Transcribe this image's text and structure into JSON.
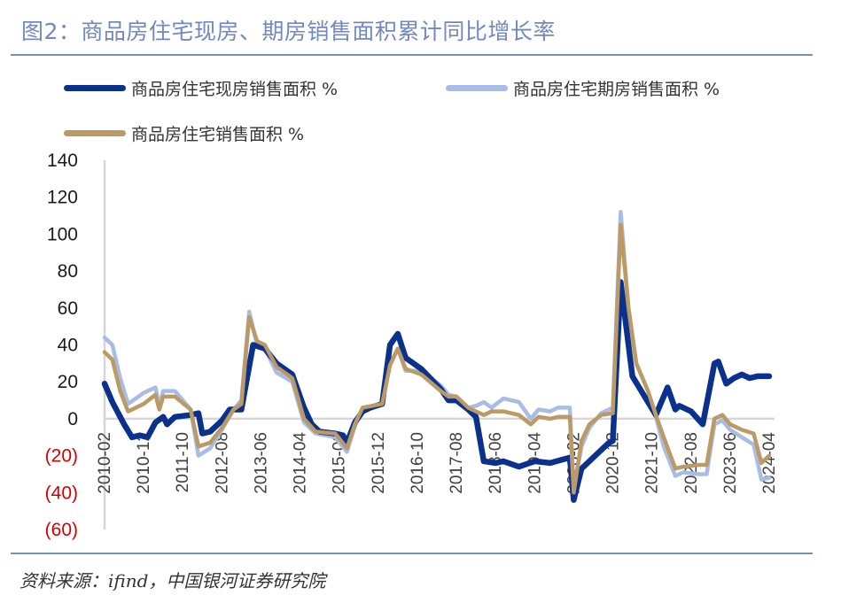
{
  "title": "图2：商品房住宅现房、期房销售面积累计同比增长率",
  "source": "资料来源：ifind，中国银河证券研究院",
  "colors": {
    "existing": "#0a318c",
    "forward": "#a7bde6",
    "total": "#bc9a66",
    "negative_label": "#d40000",
    "axis": "#d6d6d6"
  },
  "chart_data": {
    "type": "line",
    "title": "图2：商品房住宅现房、期房销售面积累计同比增长率",
    "xlabel": "",
    "ylabel": "",
    "ylim": [
      -60,
      140
    ],
    "xrange": [
      "2010-02",
      "2024-04"
    ],
    "yticks": [
      {
        "value": 140,
        "label": "140"
      },
      {
        "value": 120,
        "label": "120"
      },
      {
        "value": 100,
        "label": "100"
      },
      {
        "value": 80,
        "label": "80"
      },
      {
        "value": 60,
        "label": "60"
      },
      {
        "value": 40,
        "label": "40"
      },
      {
        "value": 20,
        "label": "20"
      },
      {
        "value": 0,
        "label": "0"
      },
      {
        "value": -20,
        "label": "(20)"
      },
      {
        "value": -40,
        "label": "(40)"
      },
      {
        "value": -60,
        "label": "(60)"
      }
    ],
    "xticks": [
      "2010-02",
      "2010-12",
      "2011-10",
      "2012-08",
      "2013-06",
      "2014-04",
      "2015-02",
      "2015-12",
      "2016-10",
      "2017-08",
      "2018-06",
      "2019-04",
      "2020-02",
      "2020-12",
      "2021-10",
      "2022-08",
      "2023-06",
      "2024-04"
    ],
    "legend": "top",
    "series": [
      {
        "name": "商品房住宅期房销售面积 %",
        "key": "forward",
        "width": 4.5,
        "points": [
          [
            "2010-02",
            44
          ],
          [
            "2010-04",
            40
          ],
          [
            "2010-06",
            22
          ],
          [
            "2010-08",
            8
          ],
          [
            "2010-12",
            14
          ],
          [
            "2011-03",
            17
          ],
          [
            "2011-04",
            7
          ],
          [
            "2011-05",
            15
          ],
          [
            "2011-08",
            15
          ],
          [
            "2011-12",
            5
          ],
          [
            "2012-02",
            -20
          ],
          [
            "2012-05",
            -16
          ],
          [
            "2012-08",
            -6
          ],
          [
            "2012-11",
            5
          ],
          [
            "2013-01",
            10
          ],
          [
            "2013-03",
            58
          ],
          [
            "2013-05",
            40
          ],
          [
            "2013-07",
            38
          ],
          [
            "2013-10",
            25
          ],
          [
            "2014-02",
            20
          ],
          [
            "2014-05",
            -2
          ],
          [
            "2014-08",
            -8
          ],
          [
            "2015-01",
            -10
          ],
          [
            "2015-04",
            -18
          ],
          [
            "2015-06",
            -4
          ],
          [
            "2015-08",
            6
          ],
          [
            "2016-01",
            8
          ],
          [
            "2016-03",
            30
          ],
          [
            "2016-05",
            38
          ],
          [
            "2016-07",
            26
          ],
          [
            "2016-11",
            26
          ],
          [
            "2017-04",
            18
          ],
          [
            "2017-06",
            13
          ],
          [
            "2017-08",
            12
          ],
          [
            "2017-11",
            6
          ],
          [
            "2018-01",
            7
          ],
          [
            "2018-03",
            9
          ],
          [
            "2018-05",
            6
          ],
          [
            "2018-08",
            11
          ],
          [
            "2018-12",
            9
          ],
          [
            "2019-03",
            0
          ],
          [
            "2019-05",
            5
          ],
          [
            "2019-08",
            4
          ],
          [
            "2019-10",
            6
          ],
          [
            "2020-01",
            6
          ],
          [
            "2020-02",
            -38
          ],
          [
            "2020-04",
            -15
          ],
          [
            "2020-06",
            -5
          ],
          [
            "2020-09",
            3
          ],
          [
            "2020-12",
            6
          ],
          [
            "2021-02",
            112
          ],
          [
            "2021-04",
            60
          ],
          [
            "2021-06",
            30
          ],
          [
            "2021-09",
            15
          ],
          [
            "2021-11",
            1
          ],
          [
            "2022-01",
            -15
          ],
          [
            "2022-04",
            -31
          ],
          [
            "2022-06",
            -29
          ],
          [
            "2022-10",
            -30
          ],
          [
            "2022-12",
            -30
          ],
          [
            "2023-02",
            -3
          ],
          [
            "2023-04",
            -1
          ],
          [
            "2023-06",
            -6
          ],
          [
            "2023-09",
            -10
          ],
          [
            "2023-12",
            -14
          ],
          [
            "2024-02",
            -33
          ],
          [
            "2024-04",
            -32
          ]
        ]
      },
      {
        "name": "商品房住宅现房销售面积 %",
        "key": "existing",
        "width": 6.5,
        "points": [
          [
            "2010-02",
            19
          ],
          [
            "2010-04",
            9
          ],
          [
            "2010-07",
            -3
          ],
          [
            "2010-09",
            -10
          ],
          [
            "2010-11",
            -9
          ],
          [
            "2011-01",
            -10
          ],
          [
            "2011-03",
            -2
          ],
          [
            "2011-05",
            1
          ],
          [
            "2011-06",
            -3
          ],
          [
            "2011-08",
            1
          ],
          [
            "2011-12",
            2
          ],
          [
            "2012-02",
            3
          ],
          [
            "2012-03",
            -8
          ],
          [
            "2012-05",
            -7
          ],
          [
            "2012-08",
            -1
          ],
          [
            "2012-10",
            5
          ],
          [
            "2013-01",
            5
          ],
          [
            "2013-04",
            40
          ],
          [
            "2013-07",
            38
          ],
          [
            "2013-10",
            30
          ],
          [
            "2014-02",
            24
          ],
          [
            "2014-05",
            6
          ],
          [
            "2014-07",
            -3
          ],
          [
            "2014-09",
            -7
          ],
          [
            "2015-01",
            -8
          ],
          [
            "2015-03",
            -9
          ],
          [
            "2015-04",
            -13
          ],
          [
            "2015-06",
            -2
          ],
          [
            "2015-08",
            4
          ],
          [
            "2015-10",
            6
          ],
          [
            "2016-01",
            8
          ],
          [
            "2016-03",
            40
          ],
          [
            "2016-05",
            46
          ],
          [
            "2016-07",
            33
          ],
          [
            "2016-11",
            27
          ],
          [
            "2017-04",
            16
          ],
          [
            "2017-06",
            10
          ],
          [
            "2017-08",
            10
          ],
          [
            "2017-11",
            5
          ],
          [
            "2018-01",
            1
          ],
          [
            "2018-03",
            -23
          ],
          [
            "2018-06",
            -24
          ],
          [
            "2018-08",
            -23
          ],
          [
            "2018-12",
            -26
          ],
          [
            "2019-04",
            -23
          ],
          [
            "2019-08",
            -24
          ],
          [
            "2020-01",
            -21
          ],
          [
            "2020-02",
            -44
          ],
          [
            "2020-04",
            -27
          ],
          [
            "2020-06",
            -23
          ],
          [
            "2020-09",
            -17
          ],
          [
            "2020-11",
            -13
          ],
          [
            "2020-12",
            -12
          ],
          [
            "2021-02",
            74
          ],
          [
            "2021-04",
            40
          ],
          [
            "2021-05",
            23
          ],
          [
            "2021-07",
            16
          ],
          [
            "2021-09",
            9
          ],
          [
            "2021-11",
            2
          ],
          [
            "2022-02",
            17
          ],
          [
            "2022-04",
            5
          ],
          [
            "2022-05",
            7
          ],
          [
            "2022-08",
            4
          ],
          [
            "2022-11",
            -3
          ],
          [
            "2023-02",
            30
          ],
          [
            "2023-03",
            31
          ],
          [
            "2023-05",
            19
          ],
          [
            "2023-07",
            22
          ],
          [
            "2023-09",
            24
          ],
          [
            "2023-11",
            22
          ],
          [
            "2024-01",
            23
          ],
          [
            "2024-04",
            23
          ]
        ]
      },
      {
        "name": "商品房住宅销售面积 %",
        "key": "total",
        "width": 4.5,
        "points": [
          [
            "2010-02",
            36
          ],
          [
            "2010-04",
            32
          ],
          [
            "2010-06",
            15
          ],
          [
            "2010-08",
            4
          ],
          [
            "2010-12",
            8
          ],
          [
            "2011-03",
            13
          ],
          [
            "2011-04",
            5
          ],
          [
            "2011-05",
            12
          ],
          [
            "2011-08",
            12
          ],
          [
            "2011-12",
            5
          ],
          [
            "2012-02",
            -15
          ],
          [
            "2012-05",
            -13
          ],
          [
            "2012-08",
            -5
          ],
          [
            "2012-11",
            5
          ],
          [
            "2013-01",
            8
          ],
          [
            "2013-03",
            55
          ],
          [
            "2013-05",
            42
          ],
          [
            "2013-07",
            40
          ],
          [
            "2013-10",
            28
          ],
          [
            "2014-02",
            22
          ],
          [
            "2014-05",
            0
          ],
          [
            "2014-08",
            -7
          ],
          [
            "2015-01",
            -8
          ],
          [
            "2015-04",
            -16
          ],
          [
            "2015-06",
            -3
          ],
          [
            "2015-08",
            6
          ],
          [
            "2016-01",
            8
          ],
          [
            "2016-03",
            29
          ],
          [
            "2016-05",
            38
          ],
          [
            "2016-07",
            27
          ],
          [
            "2016-11",
            24
          ],
          [
            "2017-04",
            15
          ],
          [
            "2017-06",
            12
          ],
          [
            "2017-08",
            12
          ],
          [
            "2017-11",
            6
          ],
          [
            "2018-01",
            4
          ],
          [
            "2018-03",
            2
          ],
          [
            "2018-05",
            4
          ],
          [
            "2018-08",
            4
          ],
          [
            "2018-12",
            2
          ],
          [
            "2019-03",
            -3
          ],
          [
            "2019-05",
            1
          ],
          [
            "2019-08",
            0
          ],
          [
            "2019-10",
            1
          ],
          [
            "2020-01",
            1
          ],
          [
            "2020-02",
            -40
          ],
          [
            "2020-04",
            -12
          ],
          [
            "2020-06",
            -3
          ],
          [
            "2020-09",
            2
          ],
          [
            "2020-12",
            3
          ],
          [
            "2021-02",
            105
          ],
          [
            "2021-04",
            60
          ],
          [
            "2021-06",
            30
          ],
          [
            "2021-09",
            15
          ],
          [
            "2021-11",
            2
          ],
          [
            "2022-01",
            -10
          ],
          [
            "2022-04",
            -27
          ],
          [
            "2022-06",
            -26
          ],
          [
            "2022-10",
            -25
          ],
          [
            "2022-12",
            -25
          ],
          [
            "2023-02",
            0
          ],
          [
            "2023-04",
            2
          ],
          [
            "2023-06",
            -3
          ],
          [
            "2023-09",
            -6
          ],
          [
            "2023-12",
            -8
          ],
          [
            "2024-02",
            -24
          ],
          [
            "2024-04",
            -20
          ]
        ]
      }
    ]
  },
  "legend": [
    {
      "label": "商品房住宅现房销售面积 %",
      "key": "existing"
    },
    {
      "label": "商品房住宅期房销售面积 %",
      "key": "forward"
    },
    {
      "label": "商品房住宅销售面积 %",
      "key": "total"
    }
  ]
}
